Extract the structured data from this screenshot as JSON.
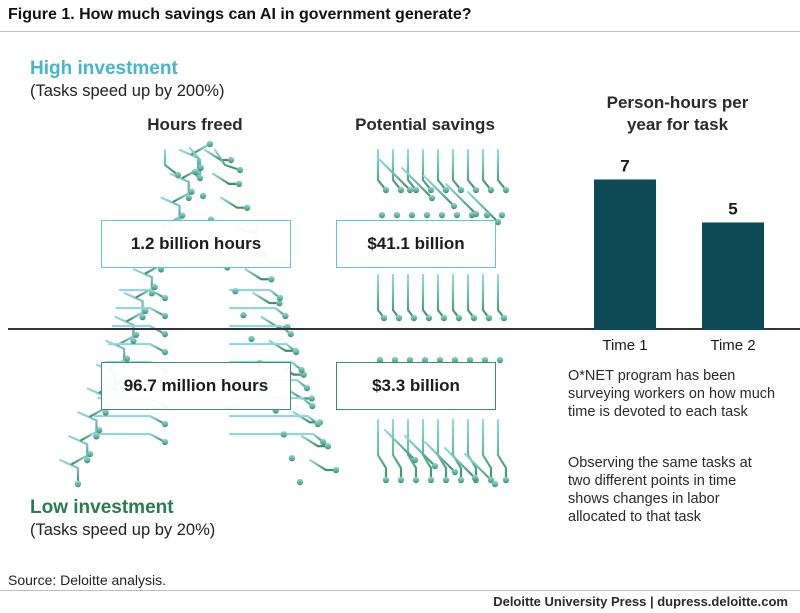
{
  "figure": {
    "title": "Figure 1. How much savings can AI in government generate?"
  },
  "high": {
    "label": "High investment",
    "sub": "(Tasks speed up by 200%)"
  },
  "low": {
    "label": "Low investment",
    "sub": "(Tasks speed up by 20%)"
  },
  "columns": {
    "hours": "Hours freed",
    "savings": "Potential savings"
  },
  "values": {
    "high_hours": "1.2 billion hours",
    "high_savings": "$41.1 billion",
    "low_hours": "96.7 million hours",
    "low_savings": "$3.3 billion"
  },
  "notes": {
    "n1": "O*NET program has been surveying workers on how much time is devoted to each task",
    "n2": "Observing the same tasks at two different points in time shows changes in labor allocated to that task"
  },
  "source": "Source: Deloitte analysis.",
  "footer": "Deloitte University Press  |  dupress.deloitte.com",
  "colors": {
    "teal_high": "#46b6cc",
    "green_low": "#2e7a55",
    "bar": "#0d4a55",
    "circuit_light": "#8fd0dc",
    "circuit_dark": "#3f8d67"
  },
  "chart_data": {
    "type": "bar",
    "title": "Person-hours per year for task",
    "title_lines": [
      "Person-hours per",
      "year for task"
    ],
    "categories": [
      "Time 1",
      "Time 2"
    ],
    "values": [
      7,
      5
    ],
    "ylim": [
      0,
      7.7
    ],
    "grid": false,
    "data_labels": true
  }
}
